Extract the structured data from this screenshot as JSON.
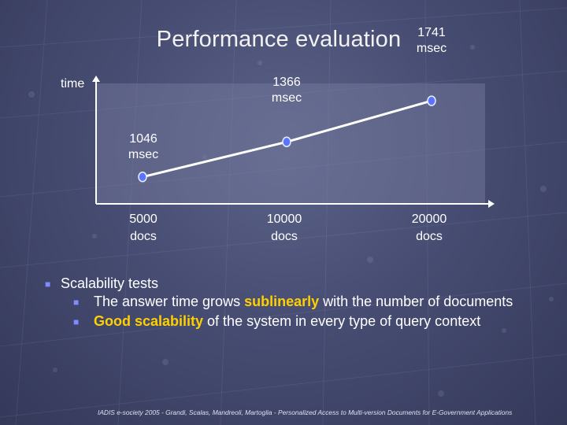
{
  "slide": {
    "title": "Performance evaluation",
    "accent_color": "#ffd000",
    "bullet_color": "#7f8cff"
  },
  "chart_data": {
    "type": "line",
    "ylabel": "time",
    "categories": [
      "5000 docs",
      "10000 docs",
      "20000 docs"
    ],
    "category_lines": [
      [
        "5000",
        "docs"
      ],
      [
        "10000",
        "docs"
      ],
      [
        "20000",
        "docs"
      ]
    ],
    "values": [
      1046,
      1366,
      1741
    ],
    "point_labels": [
      [
        "1046",
        "msec"
      ],
      [
        "1366",
        "msec"
      ],
      [
        "1741",
        "msec"
      ]
    ],
    "ylim": [
      800,
      1900
    ]
  },
  "bullets": {
    "main": "Scalability tests",
    "sub1": {
      "before": "The answer time grows ",
      "highlight": "sublinearly",
      "after": " with the number of documents"
    },
    "sub2": {
      "highlight": "Good scalability",
      "after": " of the system in every type of query context"
    }
  },
  "footer": "IADIS e-society 2005 - Grandi, Scalas, Mandreoli, Martoglia - Personalized Access to Multi-version Documents for E-Government Applications"
}
